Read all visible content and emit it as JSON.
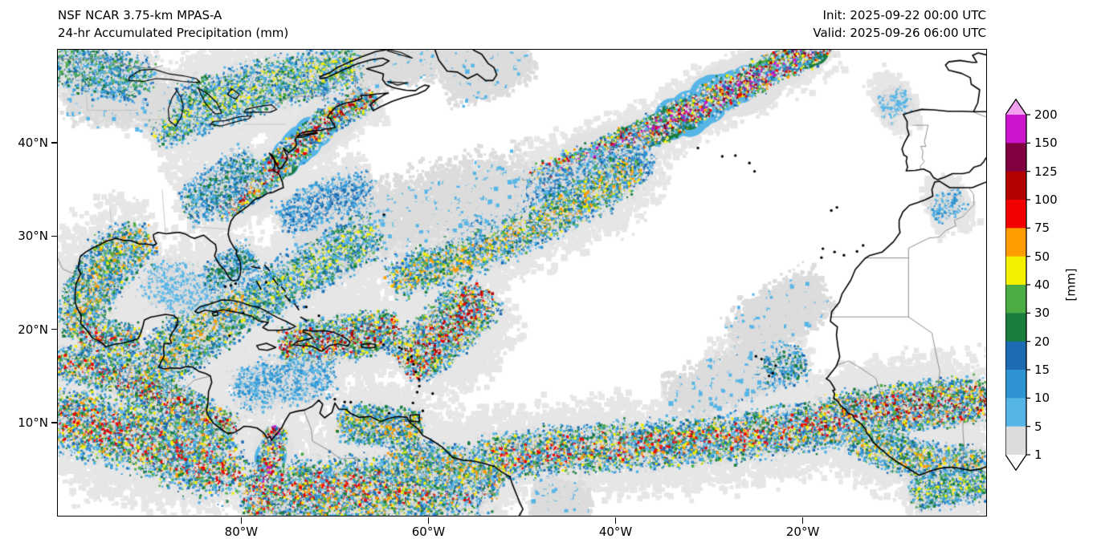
{
  "title": {
    "line1": "NSF NCAR 3.75-km MPAS-A",
    "line2": "24-hr Accumulated Precipitation (mm)"
  },
  "run_info": {
    "init": "Init: 2025-09-22 00:00 UTC",
    "valid": "Valid: 2025-09-26 06:00 UTC"
  },
  "axes": {
    "lat_ticks": [
      {
        "label": "40°N",
        "value": 40
      },
      {
        "label": "30°N",
        "value": 30
      },
      {
        "label": "20°N",
        "value": 20
      },
      {
        "label": "10°N",
        "value": 10
      }
    ],
    "lon_ticks": [
      {
        "label": "80°W",
        "value": -80
      },
      {
        "label": "60°W",
        "value": -60
      },
      {
        "label": "40°W",
        "value": -40
      },
      {
        "label": "20°W",
        "value": -20
      }
    ],
    "extent": {
      "lon_min": -99.6,
      "lon_max": -0.4,
      "lat_min": 0,
      "lat_max": 50
    }
  },
  "colorbar": {
    "unit_label": "[mm]",
    "levels": [
      1,
      5,
      10,
      15,
      20,
      30,
      40,
      50,
      75,
      100,
      125,
      150,
      200
    ],
    "segment_colors": [
      "#dcdcdc",
      "#55b5e6",
      "#2e94d2",
      "#1d6bb3",
      "#1a7c3d",
      "#4cad45",
      "#f5ef00",
      "#ff9c00",
      "#f20000",
      "#b40000",
      "#800040",
      "#cc14cc"
    ],
    "under_color": "#ffffff",
    "over_color": "#f2a0f0",
    "outline_color": "#000000"
  },
  "chart_data": {
    "type": "heatmap",
    "subtype": "precipitation_accumulation_map",
    "model": "NSF NCAR 3.75-km MPAS-A",
    "variable": "24-hr Accumulated Precipitation",
    "units": "mm",
    "init_time": "2025-09-22 00:00 UTC",
    "valid_time": "2025-09-26 06:00 UTC",
    "region": "North Atlantic / Tropical Atlantic",
    "levels_mm": [
      1,
      5,
      10,
      15,
      20,
      30,
      40,
      50,
      75,
      100,
      125,
      150,
      200
    ],
    "precip_systems": [
      {
        "name": "north-atlantic-storm",
        "kind": "band",
        "path": [
          [
            -48.5,
            36.0
          ],
          [
            -43,
            38
          ],
          [
            -38.5,
            40.2
          ],
          [
            -34,
            42.4
          ],
          [
            -30,
            44.5
          ],
          [
            -26,
            46.5
          ],
          [
            -22,
            48.5
          ],
          [
            -18,
            50.6
          ]
        ],
        "w": 1.6,
        "max": 250,
        "n": 7000,
        "ts": true,
        "te": false
      },
      {
        "name": "north-atlantic-arm",
        "kind": "band",
        "path": [
          [
            -50,
            35.3
          ],
          [
            -45.5,
            36.2
          ],
          [
            -41,
            37.6
          ],
          [
            -37,
            39.2
          ]
        ],
        "w": 1.0,
        "max": 110,
        "n": 2500,
        "ts": true,
        "te": true
      },
      {
        "name": "storm-south-fringe",
        "kind": "speckle",
        "path": [
          [
            -57,
            31.5
          ],
          [
            -50,
            33.8
          ],
          [
            -43.5,
            36.0
          ],
          [
            -37,
            38.3
          ]
        ],
        "w": 2.4,
        "max": 20,
        "n": 4000
      },
      {
        "name": "new-england-storm",
        "kind": "band",
        "path": [
          [
            -82,
            33
          ],
          [
            -79,
            35
          ],
          [
            -76.5,
            37.2
          ],
          [
            -74.3,
            39.3
          ],
          [
            -72,
            41.3
          ],
          [
            -69.5,
            43.2
          ],
          [
            -66.5,
            44.8
          ]
        ],
        "w": 1.35,
        "max": 110,
        "n": 6000,
        "ts": true,
        "te": true
      },
      {
        "name": "quebec-comma",
        "kind": "speckle",
        "path": [
          [
            -86,
            43.5
          ],
          [
            -82,
            45
          ],
          [
            -77.5,
            46.3
          ],
          [
            -72,
            47.3
          ],
          [
            -67.5,
            48.3
          ]
        ],
        "w": 2.6,
        "max": 50,
        "n": 6500
      },
      {
        "name": "great-lakes-band",
        "kind": "speckle",
        "path": [
          [
            -88.5,
            41.8
          ],
          [
            -85,
            43.2
          ],
          [
            -81.5,
            44.6
          ],
          [
            -78,
            45.6
          ]
        ],
        "w": 2.2,
        "max": 50,
        "n": 5500
      },
      {
        "name": "southeast-us",
        "kind": "speckle",
        "path": [
          [
            -85,
            33.5
          ],
          [
            -82,
            35.5
          ],
          [
            -79.5,
            37.5
          ]
        ],
        "w": 2.2,
        "max": 30,
        "n": 2500
      },
      {
        "name": "plains-gray",
        "kind": "gray",
        "path": [
          [
            -97,
            45.5
          ],
          [
            -93,
            45
          ],
          [
            -89,
            44.5
          ]
        ],
        "w": 3.0,
        "max": 10,
        "n": 2500
      },
      {
        "name": "top-left-canada",
        "kind": "speckle",
        "path": [
          [
            -99,
            48.5
          ],
          [
            -95,
            47.5
          ],
          [
            -91,
            46.8
          ]
        ],
        "w": 2.5,
        "max": 40,
        "n": 3000
      },
      {
        "name": "subtropical-band",
        "kind": "speckle",
        "path": [
          [
            -63,
            25.5
          ],
          [
            -57,
            27.5
          ],
          [
            -51,
            30
          ],
          [
            -46,
            32.5
          ],
          [
            -41.5,
            35
          ],
          [
            -38.5,
            37
          ]
        ],
        "w": 2.2,
        "max": 75,
        "n": 8000
      },
      {
        "name": "sargasso-gray",
        "kind": "gray",
        "path": [
          [
            -72,
            30
          ],
          [
            -65,
            32
          ],
          [
            -58,
            33.8
          ],
          [
            -51,
            35.5
          ]
        ],
        "w": 4.0,
        "max": 5,
        "n": 4500
      },
      {
        "name": "hatteras-offshore",
        "kind": "speckle",
        "path": [
          [
            -75,
            32
          ],
          [
            -71,
            33.8
          ],
          [
            -67,
            35.2
          ]
        ],
        "w": 2.0,
        "max": 20,
        "n": 3000
      },
      {
        "name": "bahamas-streaks",
        "kind": "speckle",
        "path": [
          [
            -79.5,
            22.5
          ],
          [
            -76,
            24.5
          ],
          [
            -72.5,
            26.5
          ],
          [
            -69,
            28.5
          ],
          [
            -66.5,
            30
          ]
        ],
        "w": 2.4,
        "max": 50,
        "n": 7000
      },
      {
        "name": "hispaniola-cluster",
        "kind": "speckle",
        "path": [
          [
            -74.5,
            18.2
          ],
          [
            -71,
            18.8
          ],
          [
            -67.5,
            19.3
          ],
          [
            -64.5,
            19.8
          ]
        ],
        "w": 2.1,
        "max": 125,
        "n": 7000
      },
      {
        "name": "antilles-east-cluster",
        "kind": "speckle",
        "path": [
          [
            -61.5,
            17
          ],
          [
            -59,
            19
          ],
          [
            -56.8,
            21
          ],
          [
            -55,
            23
          ]
        ],
        "w": 2.7,
        "max": 125,
        "n": 8000
      },
      {
        "name": "itcz",
        "kind": "speckle",
        "path": [
          [
            -53.5,
            6
          ],
          [
            -47,
            7
          ],
          [
            -40,
            7.4
          ],
          [
            -33,
            7.8
          ],
          [
            -26,
            8.6
          ],
          [
            -20,
            9.4
          ],
          [
            -14.5,
            10.2
          ]
        ],
        "w": 2.4,
        "max": 100,
        "n": 15000
      },
      {
        "name": "itcz-core",
        "kind": "band",
        "path": [
          [
            -46,
            6.9
          ],
          [
            -40,
            7.3
          ],
          [
            -34,
            7.7
          ],
          [
            -28,
            8.3
          ]
        ],
        "w": 0.8,
        "max": 90,
        "n": 0,
        "ts": true,
        "te": true
      },
      {
        "name": "west-africa-monsoon",
        "kind": "speckle",
        "path": [
          [
            -16.5,
            10.3
          ],
          [
            -13,
            11
          ],
          [
            -9,
            11.6
          ],
          [
            -5,
            12
          ],
          [
            -1.5,
            12.3
          ]
        ],
        "w": 2.4,
        "max": 110,
        "n": 9000
      },
      {
        "name": "guinea-coast",
        "kind": "speckle",
        "path": [
          [
            -14,
            8.3
          ],
          [
            -11,
            7.2
          ],
          [
            -8,
            6.0
          ],
          [
            -5,
            5.4
          ],
          [
            -1.5,
            5.6
          ]
        ],
        "w": 2.0,
        "max": 75,
        "n": 5000
      },
      {
        "name": "gulf-of-guinea",
        "kind": "speckle",
        "path": [
          [
            -7.5,
            2.5
          ],
          [
            -4,
            3
          ],
          [
            -1,
            3.5
          ]
        ],
        "w": 1.8,
        "max": 50,
        "n": 3000
      },
      {
        "name": "amazon-interior",
        "kind": "speckle",
        "path": [
          [
            -78,
            2.2
          ],
          [
            -72,
            2.6
          ],
          [
            -66,
            2.6
          ],
          [
            -60,
            3.2
          ],
          [
            -55,
            3.8
          ]
        ],
        "w": 3.4,
        "max": 100,
        "n": 13000
      },
      {
        "name": "guianas",
        "kind": "speckle",
        "path": [
          [
            -63,
            6
          ],
          [
            -60,
            5.4
          ],
          [
            -56.5,
            4.8
          ],
          [
            -53.5,
            4.4
          ]
        ],
        "w": 2.4,
        "max": 75,
        "n": 5000
      },
      {
        "name": "colombia-core",
        "kind": "band",
        "path": [
          [
            -78.0,
            3.2
          ],
          [
            -77.2,
            5.2
          ],
          [
            -76.6,
            7.2
          ],
          [
            -76.3,
            8.8
          ]
        ],
        "w": 1.1,
        "max": 200,
        "n": 5000,
        "ts": true,
        "te": true
      },
      {
        "name": "central-america",
        "kind": "speckle",
        "path": [
          [
            -92.5,
            14.8
          ],
          [
            -89.5,
            13.2
          ],
          [
            -86.8,
            11.8
          ],
          [
            -84.2,
            10.2
          ],
          [
            -81.8,
            9.2
          ]
        ],
        "w": 2.0,
        "max": 125,
        "n": 7000
      },
      {
        "name": "east-pacific-itcz",
        "kind": "speckle",
        "path": [
          [
            -99.5,
            10.5
          ],
          [
            -95,
            9.5
          ],
          [
            -90,
            8
          ],
          [
            -86,
            6.5
          ],
          [
            -82,
            5
          ]
        ],
        "w": 3.4,
        "max": 100,
        "n": 9000
      },
      {
        "name": "mexico-pacific",
        "kind": "speckle",
        "path": [
          [
            -99.3,
            16.5
          ],
          [
            -96.5,
            15.8
          ],
          [
            -94,
            15.2
          ]
        ],
        "w": 1.6,
        "max": 100,
        "n": 3500
      },
      {
        "name": "gulf-of-mexico-west",
        "kind": "speckle",
        "path": [
          [
            -97.5,
            20.5
          ],
          [
            -96.3,
            23.5
          ],
          [
            -94.8,
            26
          ],
          [
            -93.5,
            28.2
          ],
          [
            -91,
            29
          ]
        ],
        "w": 2.6,
        "max": 75,
        "n": 6500
      },
      {
        "name": "bay-of-campeche",
        "kind": "speckle",
        "path": [
          [
            -96.3,
            19.3
          ],
          [
            -94.3,
            18.8
          ],
          [
            -92,
            18.6
          ]
        ],
        "w": 1.8,
        "max": 100,
        "n": 3500
      },
      {
        "name": "western-caribbean",
        "kind": "speckle",
        "path": [
          [
            -88.5,
            16.5
          ],
          [
            -86,
            18.5
          ],
          [
            -83.5,
            20.5
          ],
          [
            -81,
            22.2
          ]
        ],
        "w": 2.8,
        "max": 75,
        "n": 7500
      },
      {
        "name": "central-caribbean",
        "kind": "speckle",
        "path": [
          [
            -79.5,
            13.5
          ],
          [
            -75.5,
            14.5
          ],
          [
            -71.5,
            15
          ]
        ],
        "w": 2.6,
        "max": 15,
        "n": 3000
      },
      {
        "name": "venezuela-coast",
        "kind": "speckle",
        "path": [
          [
            -68.5,
            10
          ],
          [
            -65,
            9.6
          ],
          [
            -61.8,
            9.3
          ]
        ],
        "w": 1.9,
        "max": 75,
        "n": 4500
      },
      {
        "name": "cape-verde-area",
        "kind": "speckle",
        "path": [
          [
            -27.5,
            14.5
          ],
          [
            -24,
            15.6
          ],
          [
            -20.8,
            16.5
          ]
        ],
        "w": 2.2,
        "max": 30,
        "n": 3000
      },
      {
        "name": "east-atlantic-gray",
        "kind": "gray",
        "path": [
          [
            -26,
            19.5
          ],
          [
            -22.5,
            21.5
          ],
          [
            -19,
            23.5
          ]
        ],
        "w": 3.0,
        "max": 8,
        "n": 3000
      },
      {
        "name": "newfoundland-gray",
        "kind": "gray",
        "path": [
          [
            -57,
            46.5
          ],
          [
            -53.5,
            47.8
          ],
          [
            -50.5,
            49
          ]
        ],
        "w": 2.6,
        "max": 8,
        "n": 2200
      },
      {
        "name": "galicia-specks",
        "kind": "speckle",
        "path": [
          [
            -11,
            43.8
          ],
          [
            -9.5,
            44.8
          ]
        ],
        "w": 1.5,
        "max": 10,
        "n": 800
      },
      {
        "name": "atlas-specks",
        "kind": "speckle",
        "path": [
          [
            -5.5,
            32.8
          ],
          [
            -3.5,
            33.8
          ]
        ],
        "w": 1.4,
        "max": 15,
        "n": 700
      },
      {
        "name": "brazil-ne-gray",
        "kind": "gray",
        "path": [
          [
            -47.5,
            1.5
          ],
          [
            -44,
            0.8
          ]
        ],
        "w": 2.4,
        "max": 6,
        "n": 1500
      },
      {
        "name": "tropical-mid-gray",
        "kind": "gray",
        "path": [
          [
            -33,
            13
          ],
          [
            -29,
            14.2
          ],
          [
            -25.5,
            15.4
          ]
        ],
        "w": 2.6,
        "max": 6,
        "n": 1800
      },
      {
        "name": "gulf-of-mexico-east",
        "kind": "speckle",
        "path": [
          [
            -89,
            25
          ],
          [
            -86,
            24
          ],
          [
            -83.5,
            23.5
          ]
        ],
        "w": 2.6,
        "max": 10,
        "n": 2200
      },
      {
        "name": "florida-straits",
        "kind": "speckle",
        "path": [
          [
            -83,
            25.5
          ],
          [
            -81,
            26.5
          ],
          [
            -79.5,
            27.5
          ]
        ],
        "w": 1.8,
        "max": 30,
        "n": 1800
      },
      {
        "name": "north-shore-gray",
        "kind": "gray",
        "path": [
          [
            -66,
            49
          ],
          [
            -62,
            49.5
          ],
          [
            -58,
            49.8
          ]
        ],
        "w": 3.0,
        "max": 6,
        "n": 2000
      }
    ]
  }
}
